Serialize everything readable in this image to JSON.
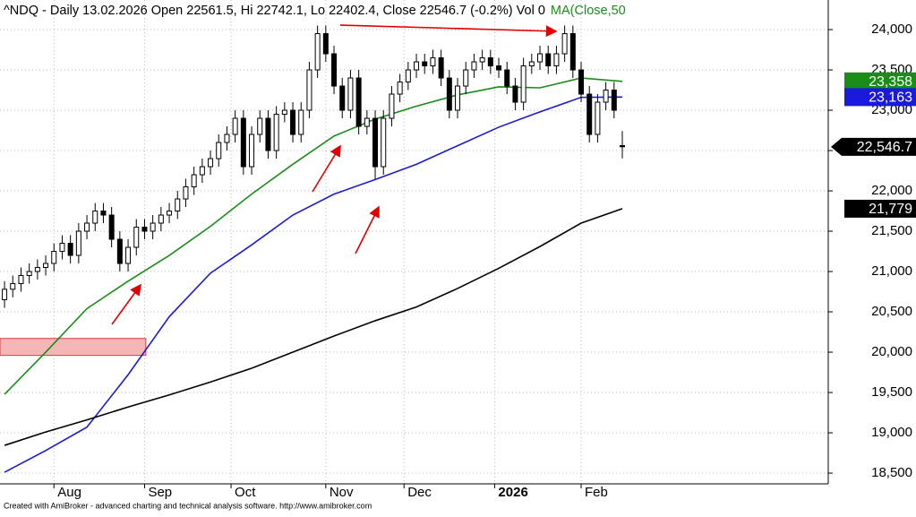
{
  "chart_data": {
    "type": "candlestick",
    "title": "^NDQ - Daily 13.02.2026 Open 22561.5, Hi 22742.1, Lo 22402.4, Close 22546.7 (-0.2%) Vol 0",
    "footer": "Created with AmiBroker - advanced charting and technical analysis software. http://www.amibroker.com",
    "xlim": [
      -1.1,
      200
    ],
    "ylim": [
      18367,
      24367
    ],
    "yticks": [
      {
        "value": 18500,
        "label": "18,500"
      },
      {
        "value": 19000,
        "label": "19,000"
      },
      {
        "value": 19500,
        "label": "19,500"
      },
      {
        "value": 20000,
        "label": "20,000"
      },
      {
        "value": 20500,
        "label": "20,500"
      },
      {
        "value": 21000,
        "label": "21,000"
      },
      {
        "value": 21500,
        "label": "21,500"
      },
      {
        "value": 22000,
        "label": "22,000"
      },
      {
        "value": 22500,
        "label": "22,500"
      },
      {
        "value": 23000,
        "label": "23,000"
      },
      {
        "value": 23500,
        "label": "23,500"
      },
      {
        "value": 24000,
        "label": "24,000"
      }
    ],
    "xticks": [
      {
        "value": 12,
        "label": "Aug"
      },
      {
        "value": 34,
        "label": "Sep"
      },
      {
        "value": 55,
        "label": "Oct"
      },
      {
        "value": 78,
        "label": "Nov"
      },
      {
        "value": 97,
        "label": "Dec"
      },
      {
        "value": 119,
        "label": "2026"
      },
      {
        "value": 140,
        "label": "Feb"
      }
    ],
    "grid": true,
    "candles": {
      "x": [
        0,
        2,
        4,
        6,
        8,
        10,
        12,
        14,
        16,
        18,
        20,
        22,
        24,
        26,
        28,
        30,
        32,
        34,
        36,
        38,
        40,
        42,
        44,
        46,
        48,
        50,
        52,
        54,
        56,
        58,
        60,
        62,
        64,
        66,
        68,
        70,
        72,
        74,
        76,
        78,
        80,
        82,
        84,
        86,
        88,
        90,
        92,
        94,
        96,
        98,
        100,
        102,
        104,
        106,
        108,
        110,
        112,
        114,
        116,
        118,
        120,
        122,
        124,
        126,
        128,
        130,
        132,
        134,
        136,
        138,
        140,
        142,
        144,
        146,
        148,
        150
      ],
      "open": [
        20650,
        20780,
        20850,
        20950,
        21000,
        21050,
        21100,
        21250,
        21350,
        21200,
        21500,
        21600,
        21750,
        21700,
        21400,
        21100,
        21300,
        21550,
        21500,
        21600,
        21700,
        21750,
        21900,
        22050,
        22200,
        22300,
        22400,
        22600,
        22700,
        22900,
        22300,
        22700,
        22900,
        22500,
        22950,
        23000,
        22700,
        23000,
        23500,
        23950,
        23700,
        23300,
        23000,
        23400,
        22800,
        22900,
        22300,
        22900,
        23200,
        23350,
        23500,
        23600,
        23550,
        23650,
        23400,
        23000,
        23300,
        23500,
        23600,
        23650,
        23550,
        23500,
        23300,
        23100,
        23550,
        23600,
        23700,
        23550,
        23700,
        23950,
        23500,
        23200,
        22700,
        23100,
        23250,
        22561.5
      ],
      "high": [
        20880,
        20950,
        21050,
        21100,
        21150,
        21200,
        21350,
        21450,
        21450,
        21600,
        21700,
        21850,
        21850,
        21800,
        21500,
        21400,
        21650,
        21650,
        21700,
        21800,
        21850,
        22000,
        22150,
        22300,
        22400,
        22500,
        22700,
        22800,
        23000,
        23000,
        22800,
        23000,
        23000,
        23050,
        23100,
        23100,
        23100,
        23600,
        24050,
        24050,
        23800,
        23400,
        23500,
        23500,
        23000,
        23000,
        23000,
        23300,
        23450,
        23600,
        23700,
        23700,
        23750,
        23750,
        23500,
        23400,
        23600,
        23700,
        23750,
        23750,
        23650,
        23600,
        23400,
        23650,
        23700,
        23800,
        23800,
        23800,
        24050,
        24050,
        23600,
        23300,
        23200,
        23350,
        23350,
        22742.1
      ],
      "low": [
        20550,
        20680,
        20750,
        20850,
        20900,
        20950,
        21000,
        21150,
        21100,
        21100,
        21400,
        21500,
        21600,
        21300,
        21000,
        21000,
        21200,
        21400,
        21400,
        21500,
        21600,
        21650,
        21800,
        21950,
        22100,
        22200,
        22300,
        22500,
        22600,
        22200,
        22200,
        22600,
        22400,
        22400,
        22850,
        22600,
        22600,
        22900,
        23400,
        23600,
        23200,
        22900,
        22900,
        22700,
        22700,
        22150,
        22200,
        22800,
        23100,
        23250,
        23400,
        23450,
        23450,
        23300,
        22900,
        22900,
        23200,
        23400,
        23500,
        23450,
        23400,
        23200,
        23000,
        23000,
        23450,
        23500,
        23450,
        23450,
        23600,
        23400,
        23100,
        22600,
        22600,
        23000,
        22900,
        22402.4
      ],
      "close": [
        20780,
        20850,
        20950,
        21000,
        21050,
        21100,
        21250,
        21350,
        21200,
        21500,
        21600,
        21750,
        21700,
        21400,
        21100,
        21300,
        21550,
        21500,
        21600,
        21700,
        21750,
        21900,
        22050,
        22200,
        22300,
        22400,
        22600,
        22700,
        22900,
        22300,
        22700,
        22900,
        22500,
        22950,
        23000,
        22700,
        23000,
        23500,
        23950,
        23700,
        23300,
        23000,
        23400,
        22800,
        22900,
        22300,
        22900,
        23200,
        23350,
        23500,
        23600,
        23550,
        23650,
        23400,
        23000,
        23300,
        23500,
        23600,
        23650,
        23550,
        23500,
        23300,
        23100,
        23550,
        23600,
        23700,
        23550,
        23700,
        23950,
        23500,
        23200,
        22700,
        23100,
        23250,
        23000,
        22546.7
      ],
      "value_labels": [
        null,
        null,
        null,
        null,
        null,
        null,
        null,
        null,
        null,
        null,
        null,
        null,
        null,
        null,
        null,
        null,
        null,
        null,
        null,
        null,
        null,
        null,
        null,
        null,
        null,
        null,
        null,
        null,
        null,
        null,
        null,
        null,
        null,
        null,
        null,
        null,
        null,
        null,
        null,
        null,
        null,
        null,
        null,
        null,
        null,
        null,
        null,
        null,
        null,
        null,
        null,
        null,
        null,
        null,
        null,
        null,
        null,
        null,
        null,
        null,
        null,
        null,
        null,
        null,
        null,
        null,
        null,
        null,
        null,
        null,
        null,
        null,
        null,
        null,
        null,
        "22,546.7"
      ],
      "up_color": "#ffffff",
      "down_color": "#000000"
    },
    "series": [
      {
        "name": "MA(Close,50",
        "type": "line",
        "color": "#1a8c1a",
        "x": [
          0,
          10,
          20,
          30,
          40,
          50,
          60,
          70,
          80,
          90,
          100,
          110,
          120,
          130,
          140,
          150
        ],
        "values": [
          19478,
          20000,
          20540,
          20880,
          21200,
          21560,
          21960,
          22330,
          22680,
          22890,
          23050,
          23190,
          23290,
          23278,
          23400,
          23358
        ],
        "value_labels": [
          null,
          null,
          null,
          null,
          null,
          null,
          null,
          null,
          null,
          null,
          null,
          null,
          null,
          null,
          null,
          "23,358"
        ]
      },
      {
        "type": "line",
        "color": "#1a1adc",
        "x": [
          0,
          10,
          20,
          30,
          40,
          50,
          60,
          70,
          80,
          90,
          100,
          110,
          120,
          130,
          140,
          150
        ],
        "values": [
          18511,
          18780,
          19070,
          19720,
          20440,
          20980,
          21330,
          21700,
          21960,
          22140,
          22330,
          22560,
          22790,
          22980,
          23160,
          23163
        ],
        "value_labels": [
          null,
          null,
          null,
          null,
          null,
          null,
          null,
          null,
          null,
          null,
          null,
          null,
          null,
          null,
          null,
          "23,163"
        ]
      },
      {
        "type": "line",
        "color": "#000000",
        "x": [
          0,
          10,
          20,
          30,
          40,
          50,
          60,
          70,
          80,
          90,
          100,
          110,
          120,
          130,
          140,
          150
        ],
        "values": [
          18844,
          19010,
          19160,
          19320,
          19470,
          19630,
          19800,
          20000,
          20200,
          20390,
          20560,
          20790,
          21040,
          21310,
          21600,
          21779
        ],
        "value_labels": [
          null,
          null,
          null,
          null,
          null,
          null,
          null,
          null,
          null,
          null,
          null,
          null,
          null,
          null,
          null,
          "21,779"
        ]
      }
    ],
    "zones": [
      {
        "x": [
          -1.1,
          34.3
        ],
        "y": [
          19960,
          20170
        ],
        "color": "#f4b6b6"
      }
    ]
  }
}
